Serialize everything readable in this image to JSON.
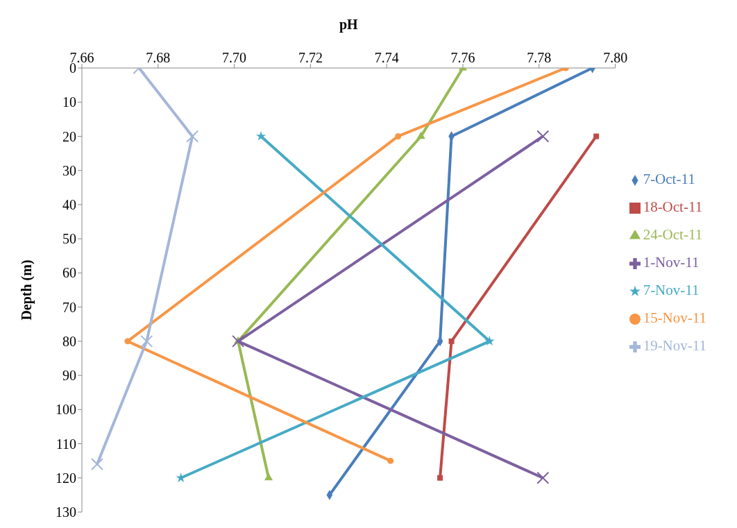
{
  "chart_data": {
    "type": "line",
    "xlabel": "pH",
    "ylabel": "Depth (m)",
    "xlim": [
      7.66,
      7.8
    ],
    "xticks": [
      7.66,
      7.68,
      {
        "value": 7.7,
        "label": "7.70"
      },
      7.72,
      7.74,
      7.76,
      7.78,
      {
        "value": 7.8,
        "label": "7.80"
      }
    ],
    "ylim": [
      130,
      0
    ],
    "yticks": [
      0,
      10,
      20,
      30,
      40,
      50,
      60,
      70,
      80,
      90,
      100,
      110,
      120,
      130
    ],
    "grid": false,
    "legend": "right",
    "series": [
      {
        "name": "7-Oct-11",
        "color": "#4a7ebb",
        "marker": "diamond",
        "x": [
          7.794,
          7.757,
          7.754,
          7.725
        ],
        "values": [
          0,
          20,
          80,
          125
        ]
      },
      {
        "name": "18-Oct-11",
        "color": "#be4b48",
        "marker": "square",
        "x": [
          7.795,
          7.757,
          7.754
        ],
        "values": [
          20,
          80,
          120
        ]
      },
      {
        "name": "24-Oct-11",
        "color": "#98b954",
        "marker": "triangle",
        "x": [
          7.76,
          7.749,
          7.701,
          7.709
        ],
        "values": [
          0,
          20,
          80,
          120
        ]
      },
      {
        "name": "1-Nov-11",
        "color": "#7d60a0",
        "marker": "cross",
        "x": [
          7.781,
          7.701,
          7.781
        ],
        "values": [
          20,
          80,
          120
        ]
      },
      {
        "name": "7-Nov-11",
        "color": "#46aac5",
        "marker": "star",
        "x": [
          7.707,
          7.767,
          7.686
        ],
        "values": [
          20,
          80,
          120
        ]
      },
      {
        "name": "15-Nov-11",
        "color": "#f79646",
        "marker": "circle",
        "x": [
          7.787,
          7.743,
          7.672,
          7.741
        ],
        "values": [
          0,
          20,
          80,
          115
        ]
      },
      {
        "name": "19-Nov-11",
        "color": "#a5b6d9",
        "marker": "cross",
        "x": [
          7.675,
          7.689,
          7.677,
          7.664
        ],
        "values": [
          0,
          20,
          80,
          116
        ]
      }
    ]
  }
}
